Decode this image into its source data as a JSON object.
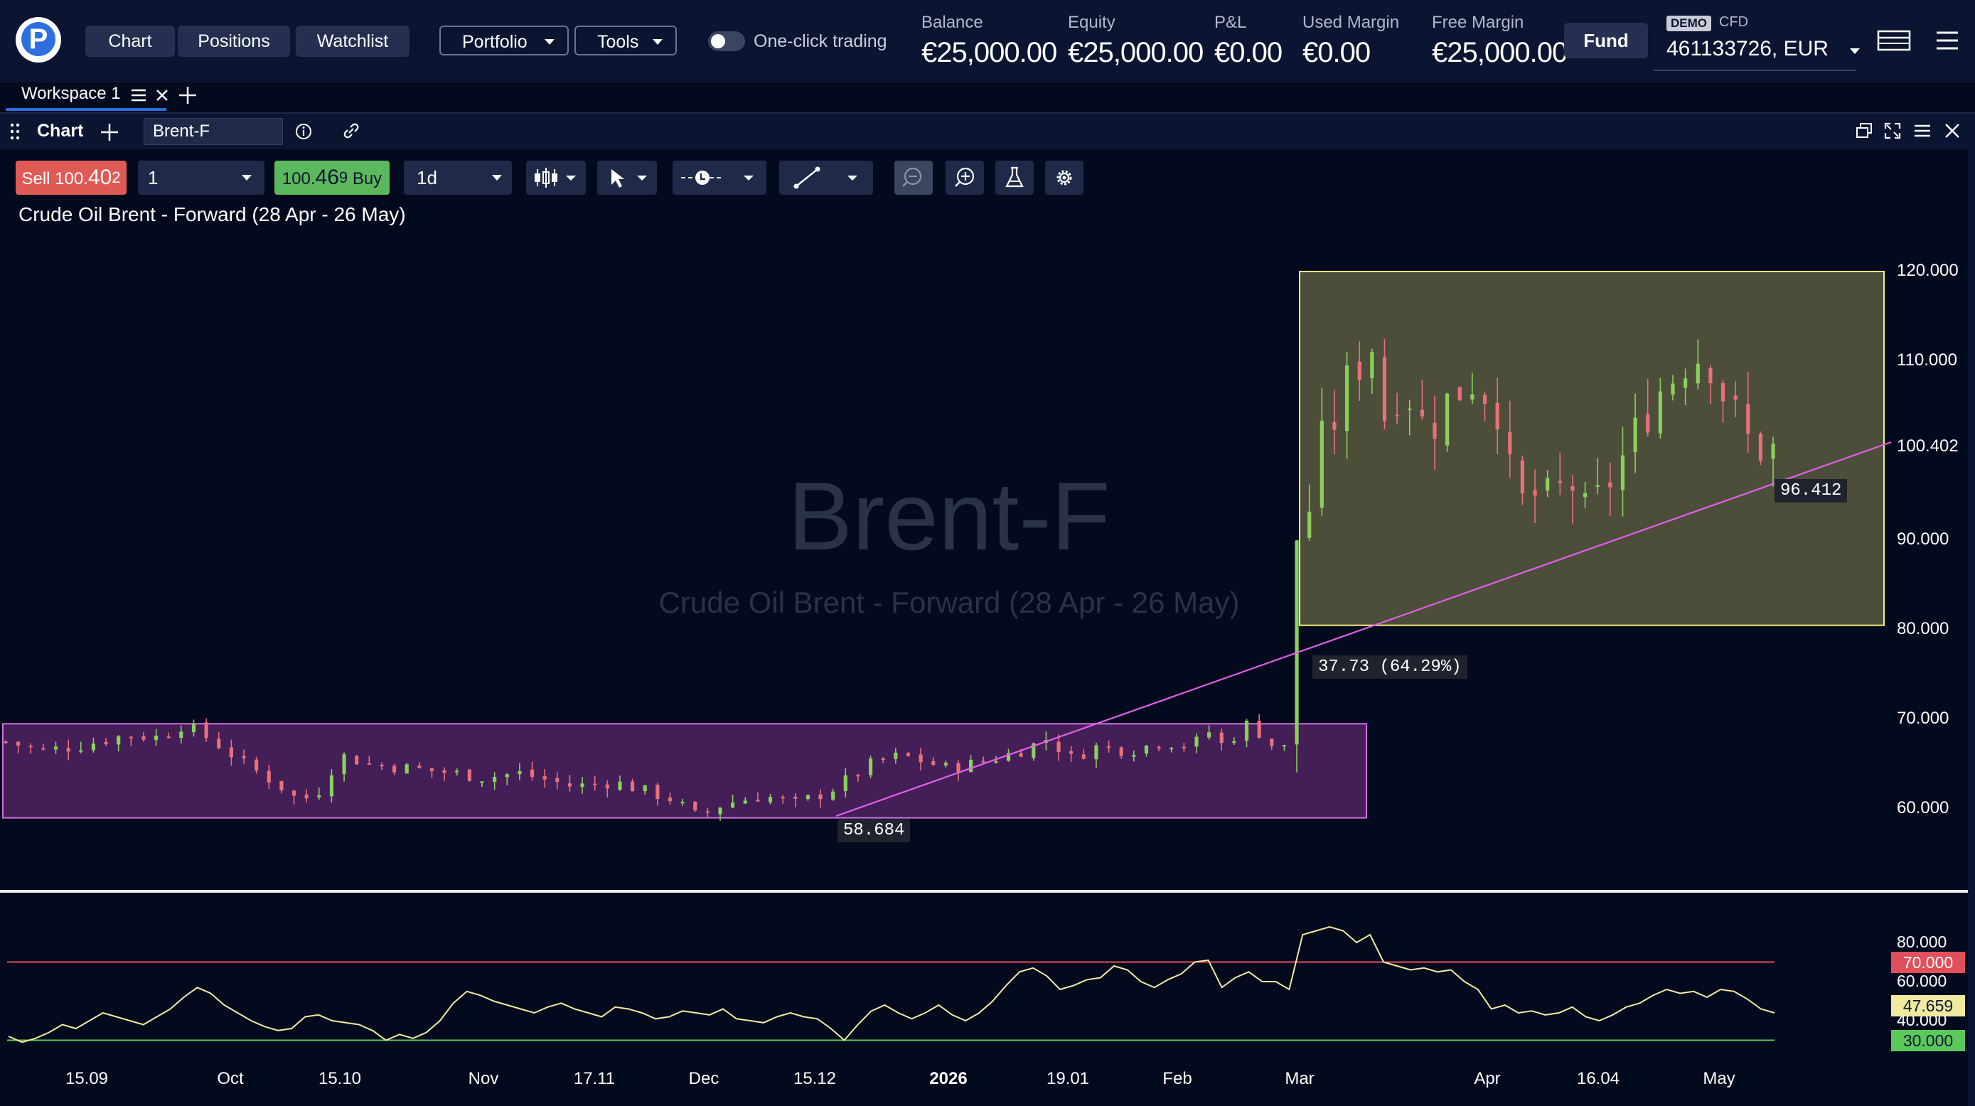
{
  "nav": {
    "chart_label": "Chart",
    "positions_label": "Positions",
    "watchlist_label": "Watchlist",
    "portfolio_label": "Portfolio",
    "tools_label": "Tools",
    "one_click_label": "One-click trading"
  },
  "account": {
    "balance_label": "Balance",
    "balance_value": "€25,000.00",
    "equity_label": "Equity",
    "equity_value": "€25,000.00",
    "pnl_label": "P&L",
    "pnl_value": "€0.00",
    "used_margin_label": "Used Margin",
    "used_margin_value": "€0.00",
    "free_margin_label": "Free Margin",
    "free_margin_value": "€25,000.00",
    "fund_label": "Fund",
    "demo_badge": "DEMO",
    "cfd_label": "CFD",
    "account_id": "461133726, EUR"
  },
  "workspace": {
    "tab_label": "Workspace 1"
  },
  "panel": {
    "tab_label": "Chart",
    "symbol": "Brent-F"
  },
  "trade": {
    "sell_label": "Sell",
    "sell_price_main": "100.",
    "sell_price_big": "40",
    "sell_price_small": "2",
    "quantity": "1",
    "buy_price_main": "100.",
    "buy_price_big": "46",
    "buy_price_small": "9",
    "buy_label": "Buy",
    "timeframe": "1d"
  },
  "chart_data": {
    "type": "candlestick",
    "title": "Crude Oil Brent - Forward (28 Apr - 26 May)",
    "watermark_symbol": "Brent-F",
    "watermark_name": "Crude Oil Brent - Forward (28 Apr - 26 May)",
    "ylim": [
      53,
      124
    ],
    "y_ticks": [
      "120.000",
      "110.000",
      "100.402",
      "90.000",
      "80.000",
      "70.000",
      "60.000"
    ],
    "current_price": "100.402",
    "x_ticks": [
      "15.09",
      "Oct",
      "15.10",
      "Nov",
      "17.11",
      "Dec",
      "15.12",
      "2026",
      "19.01",
      "Feb",
      "Mar",
      "Apr",
      "16.04",
      "May"
    ],
    "close_path": [
      [
        0,
        67.5
      ],
      [
        12,
        66.5
      ],
      [
        24,
        67.0
      ],
      [
        40,
        68.2
      ],
      [
        52,
        68.0
      ],
      [
        60,
        69.5
      ],
      [
        72,
        67.0
      ],
      [
        80,
        65.0
      ],
      [
        90,
        63.0
      ],
      [
        98,
        61.0
      ],
      [
        104,
        61.5
      ],
      [
        112,
        66.0
      ],
      [
        122,
        65.0
      ],
      [
        136,
        64.5
      ],
      [
        150,
        64.0
      ],
      [
        160,
        63.5
      ],
      [
        172,
        64.0
      ],
      [
        190,
        62.5
      ],
      [
        204,
        63.0
      ],
      [
        214,
        62.0
      ],
      [
        224,
        61.0
      ],
      [
        232,
        59.0
      ],
      [
        240,
        60.5
      ],
      [
        254,
        61.5
      ],
      [
        264,
        60.5
      ],
      [
        276,
        62.0
      ],
      [
        290,
        65.0
      ],
      [
        300,
        66.0
      ],
      [
        316,
        64.5
      ],
      [
        330,
        65.5
      ],
      [
        340,
        66.5
      ],
      [
        350,
        68.0
      ],
      [
        356,
        65.5
      ],
      [
        366,
        67.0
      ],
      [
        376,
        66.5
      ],
      [
        388,
        67.5
      ],
      [
        398,
        67.0
      ],
      [
        402,
        69.0
      ],
      [
        408,
        67.0
      ],
      [
        416,
        69.5
      ],
      [
        422,
        68.0
      ],
      [
        426,
        66.5
      ],
      [
        430,
        67.0
      ],
      [
        431,
        89.0
      ],
      [
        432,
        90.0
      ],
      [
        436,
        92.0
      ],
      [
        440,
        100.0
      ],
      [
        446,
        104.0
      ],
      [
        450,
        108.0
      ],
      [
        458,
        112.0
      ],
      [
        462,
        104.0
      ],
      [
        468,
        108.0
      ],
      [
        476,
        102.0
      ],
      [
        484,
        106.0
      ],
      [
        492,
        108.0
      ],
      [
        500,
        105.0
      ],
      [
        504,
        97.0
      ],
      [
        508,
        94.0
      ],
      [
        512,
        95.0
      ],
      [
        518,
        94.0
      ],
      [
        524,
        97.0
      ],
      [
        530,
        92.0
      ],
      [
        536,
        96.0
      ],
      [
        540,
        98.0
      ],
      [
        548,
        103.0
      ],
      [
        552,
        106.0
      ],
      [
        558,
        108.0
      ],
      [
        562,
        110.0
      ],
      [
        570,
        111.0
      ],
      [
        576,
        106.0
      ],
      [
        584,
        101.0
      ],
      [
        590,
        100.0
      ],
      [
        596,
        100.0
      ]
    ],
    "highlight_boxes": [
      {
        "name": "consolidation-range",
        "y_low": 59.0,
        "y_high": 69.5,
        "color": "#9b3ca8"
      },
      {
        "name": "breakout-range",
        "y_low": 80.5,
        "y_high": 120.0,
        "color": "#f5f07a"
      }
    ],
    "trendline_low_label": "58.684",
    "trendline_high_label": "96.412",
    "measure_label": "37.73 (64.29%)",
    "rsi": {
      "y_ticks": [
        "80.000",
        "60.000",
        "40.000"
      ],
      "upper_level": "70.000",
      "lower_level": "30.000",
      "current_value": "47.659",
      "ylim": [
        25,
        90
      ],
      "values": [
        32,
        29,
        31,
        34,
        38,
        36,
        40,
        44,
        42,
        40,
        38,
        42,
        46,
        52,
        57,
        54,
        48,
        44,
        40,
        37,
        35,
        36,
        42,
        43,
        40,
        39,
        38,
        35,
        30,
        33,
        31,
        34,
        40,
        49,
        55,
        53,
        50,
        48,
        46,
        44,
        47,
        49,
        46,
        44,
        42,
        47,
        46,
        44,
        41,
        42,
        45,
        44,
        43,
        46,
        41,
        40,
        39,
        42,
        44,
        42,
        41,
        36,
        30,
        38,
        45,
        48,
        44,
        41,
        44,
        48,
        43,
        40,
        44,
        50,
        58,
        65,
        67,
        63,
        56,
        58,
        61,
        62,
        68,
        66,
        60,
        57,
        61,
        64,
        70,
        71,
        57,
        62,
        65,
        60,
        60,
        56,
        84,
        86,
        88,
        86,
        80,
        84,
        70,
        68,
        66,
        67,
        65,
        66,
        60,
        56,
        46,
        48,
        44,
        45,
        43,
        44,
        47,
        42,
        40,
        43,
        47,
        49,
        53,
        56,
        54,
        55,
        52,
        56,
        55,
        51,
        46,
        44
      ]
    }
  }
}
